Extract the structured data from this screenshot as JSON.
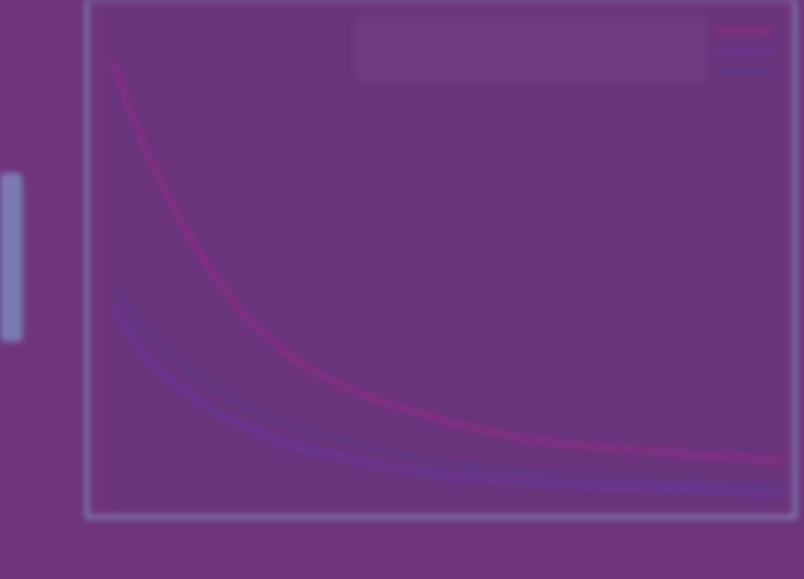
{
  "chart_data": {
    "type": "line",
    "title": "",
    "xlabel": "",
    "ylabel": "",
    "grid": false,
    "legend_placement": "top-right",
    "xlim": [
      0,
      100
    ],
    "ylim": [
      0,
      100
    ],
    "x_ticks": [
      "",
      "",
      "",
      "",
      ""
    ],
    "series": [
      {
        "name": "",
        "color": "#a0288a",
        "x": [
          0,
          5,
          10,
          15,
          20,
          25,
          30,
          40,
          50,
          60,
          70,
          80,
          90,
          100
        ],
        "y": [
          90,
          72,
          58,
          47,
          38,
          32,
          27,
          21,
          17,
          14,
          12,
          11,
          10,
          9
        ]
      },
      {
        "name": "",
        "color": "#6a3aa8",
        "x": [
          0,
          5,
          10,
          15,
          20,
          25,
          30,
          40,
          50,
          60,
          70,
          80,
          90,
          100
        ],
        "y": [
          40,
          30,
          24,
          19,
          16,
          13,
          11,
          8,
          6,
          5,
          4,
          3.5,
          3,
          2.5
        ]
      },
      {
        "name": "",
        "color": "#5a3a8e",
        "x": [
          0,
          5,
          10,
          15,
          20,
          25,
          30,
          40,
          50,
          60,
          70,
          80,
          90,
          100
        ],
        "y": [
          45,
          36,
          29,
          24,
          20,
          17,
          15,
          11,
          8.5,
          7,
          6,
          5,
          4.5,
          4
        ]
      }
    ]
  }
}
